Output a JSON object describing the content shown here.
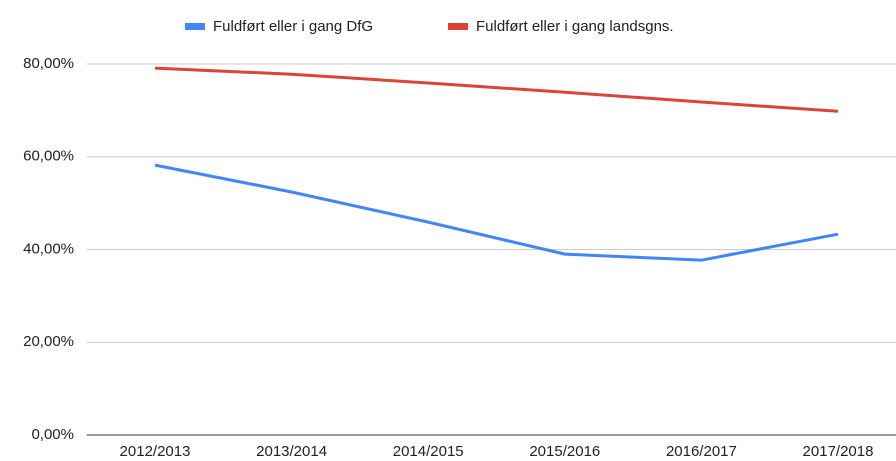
{
  "chart_data": {
    "type": "line",
    "categories": [
      "2012/2013",
      "2013/2014",
      "2014/2015",
      "2015/2016",
      "2016/2017",
      "2017/2018"
    ],
    "series": [
      {
        "name": "Fuldført eller i gang DfG",
        "color": "#4285f4",
        "values": [
          58.2,
          52.4,
          45.9,
          39.0,
          37.7,
          43.3
        ]
      },
      {
        "name": "Fuldført eller i gang landsgns.",
        "color": "#db4437",
        "values": [
          79.1,
          77.8,
          75.9,
          73.9,
          71.8,
          69.8
        ]
      }
    ],
    "ylim": [
      0,
      80
    ],
    "yticks": [
      {
        "value": 0,
        "label": "0,00%"
      },
      {
        "value": 20,
        "label": "20,00%"
      },
      {
        "value": 40,
        "label": "40,00%"
      },
      {
        "value": 60,
        "label": "60,00%"
      },
      {
        "value": 80,
        "label": "80,00%"
      }
    ],
    "grid": true,
    "legend": "top"
  }
}
